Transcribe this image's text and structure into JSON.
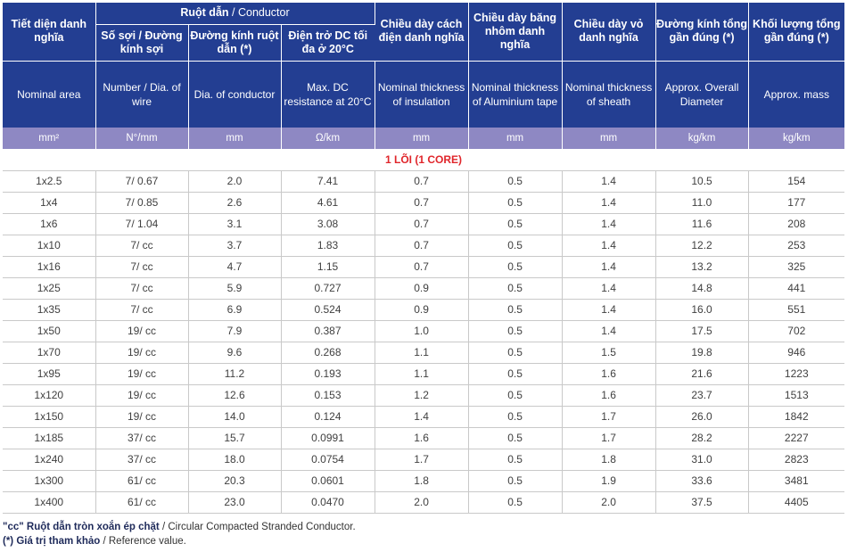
{
  "header": {
    "nominal_area_vi": "Tiết diện danh nghĩa",
    "conductor_vi": "Ruột dẫn",
    "conductor_en": " / Conductor",
    "wires_vi": "Số sợi / Đường kính sợi",
    "dia_vi": "Đường kính ruột dẫn (*)",
    "res_vi": "Điện trở DC tối đa ở 20°C",
    "ins_vi": "Chiều dày cách điện danh nghĩa",
    "alu_vi": "Chiều dày băng nhôm danh nghĩa",
    "sheath_vi": "Chiều dày vỏ danh nghĩa",
    "od_vi": "Đường kính tổng gần đúng (*)",
    "mass_vi": "Khối lượng tổng gần đúng (*)"
  },
  "header_en": {
    "nominal_area": "Nominal area",
    "wires": "Number / Dia. of wire",
    "dia": "Dia. of conductor",
    "res": "Max. DC resistance at 20°C",
    "ins": "Nominal thickness of insulation",
    "alu": "Nominal thickness of Aluminium tape",
    "sheath": "Nominal thickness of sheath",
    "od": "Approx. Overall Diameter",
    "mass": "Approx. mass"
  },
  "units": [
    "mm²",
    "N°/mm",
    "mm",
    "Ω/km",
    "mm",
    "mm",
    "mm",
    "kg/km",
    "kg/km"
  ],
  "section_title": "1 LÕI (1 CORE)",
  "rows": [
    [
      "1x2.5",
      "7/ 0.67",
      "2.0",
      "7.41",
      "0.7",
      "0.5",
      "1.4",
      "10.5",
      "154"
    ],
    [
      "1x4",
      "7/ 0.85",
      "2.6",
      "4.61",
      "0.7",
      "0.5",
      "1.4",
      "11.0",
      "177"
    ],
    [
      "1x6",
      "7/ 1.04",
      "3.1",
      "3.08",
      "0.7",
      "0.5",
      "1.4",
      "11.6",
      "208"
    ],
    [
      "1x10",
      "7/ cc",
      "3.7",
      "1.83",
      "0.7",
      "0.5",
      "1.4",
      "12.2",
      "253"
    ],
    [
      "1x16",
      "7/ cc",
      "4.7",
      "1.15",
      "0.7",
      "0.5",
      "1.4",
      "13.2",
      "325"
    ],
    [
      "1x25",
      "7/ cc",
      "5.9",
      "0.727",
      "0.9",
      "0.5",
      "1.4",
      "14.8",
      "441"
    ],
    [
      "1x35",
      "7/ cc",
      "6.9",
      "0.524",
      "0.9",
      "0.5",
      "1.4",
      "16.0",
      "551"
    ],
    [
      "1x50",
      "19/ cc",
      "7.9",
      "0.387",
      "1.0",
      "0.5",
      "1.4",
      "17.5",
      "702"
    ],
    [
      "1x70",
      "19/ cc",
      "9.6",
      "0.268",
      "1.1",
      "0.5",
      "1.5",
      "19.8",
      "946"
    ],
    [
      "1x95",
      "19/ cc",
      "11.2",
      "0.193",
      "1.1",
      "0.5",
      "1.6",
      "21.6",
      "1223"
    ],
    [
      "1x120",
      "19/ cc",
      "12.6",
      "0.153",
      "1.2",
      "0.5",
      "1.6",
      "23.7",
      "1513"
    ],
    [
      "1x150",
      "19/ cc",
      "14.0",
      "0.124",
      "1.4",
      "0.5",
      "1.7",
      "26.0",
      "1842"
    ],
    [
      "1x185",
      "37/ cc",
      "15.7",
      "0.0991",
      "1.6",
      "0.5",
      "1.7",
      "28.2",
      "2227"
    ],
    [
      "1x240",
      "37/ cc",
      "18.0",
      "0.0754",
      "1.7",
      "0.5",
      "1.8",
      "31.0",
      "2823"
    ],
    [
      "1x300",
      "61/ cc",
      "20.3",
      "0.0601",
      "1.8",
      "0.5",
      "1.9",
      "33.6",
      "3481"
    ],
    [
      "1x400",
      "61/ cc",
      "23.0",
      "0.0470",
      "2.0",
      "0.5",
      "2.0",
      "37.5",
      "4405"
    ]
  ],
  "notes": {
    "cc_vi": "\"cc\" Ruột dẫn tròn xoắn ép chặt",
    "cc_en": " / Circular Compacted Stranded Conductor.",
    "ref_vi": "(*) Giá trị tham khảo",
    "ref_en": " / Reference value."
  },
  "colors": {
    "header_bg": "#233e92",
    "units_bg": "#8e88c3",
    "section_text": "#e0262b"
  }
}
